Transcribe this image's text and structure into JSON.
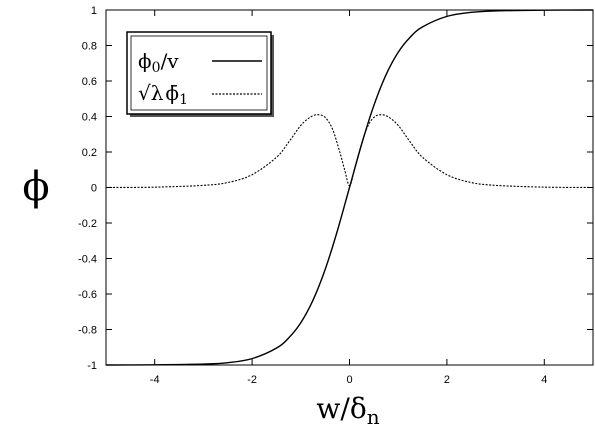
{
  "chart_data": {
    "type": "line",
    "title": "",
    "xlabel": "w/δn",
    "xlabel_main": "w/δ",
    "xlabel_sub": "n",
    "ylabel": "ϕ",
    "xlim": [
      -5,
      5
    ],
    "ylim": [
      -1,
      1
    ],
    "xticks": [
      -4,
      -2,
      0,
      2,
      4
    ],
    "yticks": [
      -1,
      -0.8,
      -0.6,
      -0.4,
      -0.2,
      0,
      0.2,
      0.4,
      0.6,
      0.8,
      1
    ],
    "xtick_labels": [
      "-4",
      "-2",
      "0",
      "2",
      "4"
    ],
    "ytick_labels": [
      "-1",
      "-0.8",
      "-0.6",
      "-0.4",
      "-0.2",
      "0",
      "0.2",
      "0.4",
      "0.6",
      "0.8",
      "1"
    ],
    "grid": false,
    "legend_position": "top-left",
    "series": [
      {
        "name": "ϕ0/v",
        "style": "solid",
        "x": [
          -5,
          -4,
          -3,
          -2.5,
          -2,
          -1.5,
          -1.25,
          -1,
          -0.75,
          -0.5,
          -0.25,
          0,
          0.25,
          0.5,
          0.75,
          1,
          1.25,
          1.5,
          2,
          2.5,
          3,
          4,
          5
        ],
        "y": [
          -1,
          -0.999,
          -0.995,
          -0.987,
          -0.964,
          -0.905,
          -0.848,
          -0.762,
          -0.635,
          -0.462,
          -0.245,
          0,
          0.245,
          0.462,
          0.635,
          0.762,
          0.848,
          0.905,
          0.964,
          0.987,
          0.995,
          0.999,
          1
        ]
      },
      {
        "name": "√λ ϕ̄1",
        "style": "dashed",
        "x": [
          -5,
          -4,
          -3,
          -2.5,
          -2,
          -1.5,
          -1.25,
          -1,
          -0.8,
          -0.65,
          -0.5,
          -0.35,
          -0.2,
          -0.1,
          0,
          0.1,
          0.2,
          0.35,
          0.5,
          0.65,
          0.8,
          1,
          1.25,
          1.5,
          2,
          2.5,
          3,
          4,
          5
        ],
        "y": [
          0,
          0.002,
          0.012,
          0.028,
          0.072,
          0.17,
          0.255,
          0.35,
          0.397,
          0.41,
          0.395,
          0.33,
          0.2,
          0.1,
          0.01,
          0.1,
          0.2,
          0.33,
          0.395,
          0.41,
          0.397,
          0.35,
          0.255,
          0.17,
          0.072,
          0.028,
          0.012,
          0.002,
          0
        ]
      }
    ]
  },
  "legend": {
    "entries": [
      {
        "main": "ϕ",
        "sub": "0",
        "suffix": "/v",
        "style": "solid"
      },
      {
        "prefix": "√λ",
        "main": "ϕ̄",
        "sub": "1",
        "style": "dashed"
      }
    ]
  }
}
